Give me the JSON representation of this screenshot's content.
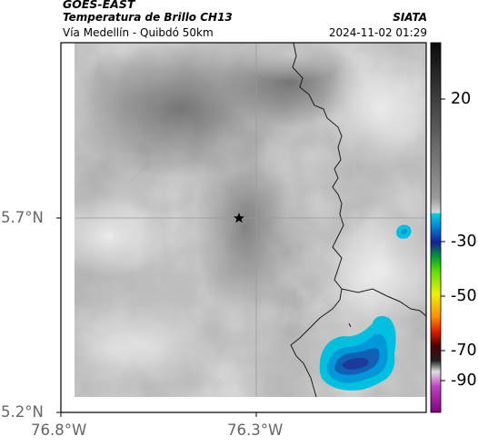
{
  "header": {
    "satellite": "GOES-EAST",
    "product": "Temperatura de Brillo CH13",
    "region": "Vía Medellín - Quibdó 50km",
    "agency": "SIATA",
    "datetime": "2024-11-02 01:29"
  },
  "map": {
    "lat_labels": [
      "5.7°N",
      "5.2°N"
    ],
    "lon_labels": [
      "76.8°W",
      "76.3°W"
    ],
    "marker": "star-marker"
  },
  "colorbar": {
    "tick_labels": [
      "20",
      "-30",
      "-50",
      "-70",
      "-90"
    ]
  },
  "colors": {
    "cloud_cold_core": "#1240a0",
    "cloud_cyan": "#00c8e6"
  }
}
